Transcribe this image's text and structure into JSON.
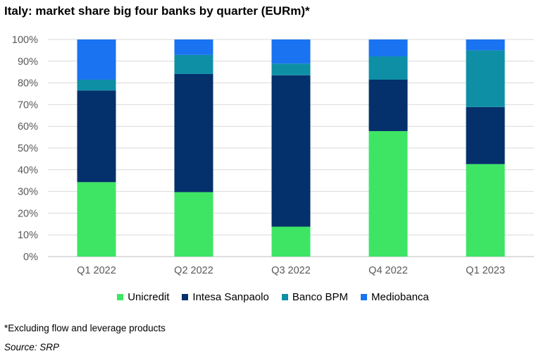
{
  "title": "Italy: market share big four banks by quarter (EURm)*",
  "footnote": "*Excluding flow and leverage products",
  "source": "Source: SRP",
  "chart_data": {
    "type": "bar",
    "stacked": true,
    "categories": [
      "Q1 2022",
      "Q2 2022",
      "Q3 2022",
      "Q4 2022",
      "Q1 2023"
    ],
    "series": [
      {
        "name": "Unicredit",
        "color": "#3ee565",
        "values": [
          34.3,
          29.7,
          13.8,
          57.8,
          42.6
        ]
      },
      {
        "name": "Intesa Sanpaolo",
        "color": "#04306b",
        "values": [
          42.2,
          54.4,
          69.7,
          23.7,
          26.3
        ]
      },
      {
        "name": "Banco BPM",
        "color": "#0e8fa6",
        "values": [
          5.0,
          8.8,
          5.4,
          10.7,
          26.1
        ]
      },
      {
        "name": "Mediobanca",
        "color": "#1a73f0",
        "values": [
          18.5,
          7.1,
          11.1,
          7.8,
          5.0
        ]
      }
    ],
    "ylim": [
      0,
      100
    ],
    "yticks": [
      "0%",
      "10%",
      "20%",
      "30%",
      "40%",
      "50%",
      "60%",
      "70%",
      "80%",
      "90%",
      "100%"
    ],
    "ytick_values": [
      0,
      10,
      20,
      30,
      40,
      50,
      60,
      70,
      80,
      90,
      100
    ],
    "grid": true,
    "legend_position": "bottom"
  }
}
